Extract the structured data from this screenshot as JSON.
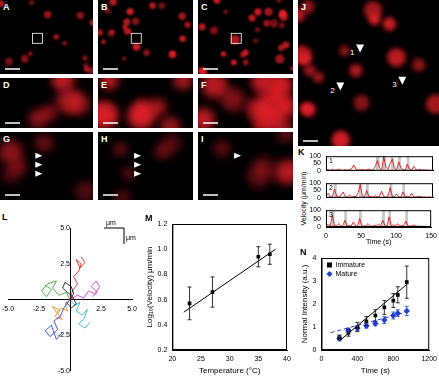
{
  "image_panels": [
    {
      "label": "A"
    },
    {
      "label": "B"
    },
    {
      "label": "C"
    },
    {
      "label": "D"
    },
    {
      "label": "E"
    },
    {
      "label": "F"
    },
    {
      "label": "G",
      "arrowheads": 3
    },
    {
      "label": "H",
      "arrowheads": 3
    },
    {
      "label": "I",
      "arrowheads": 1
    },
    {
      "label": "J",
      "markers": [
        "1",
        "2",
        "3"
      ]
    }
  ],
  "chart_data": [
    {
      "panel_label": "K",
      "type": "line",
      "x_label": "Time (s)",
      "y_label": "Velocity (μm/min)",
      "x": [
        0,
        3,
        6,
        9,
        12,
        15,
        18,
        21,
        24,
        27,
        30,
        33,
        36,
        39,
        42,
        45,
        48,
        51,
        54,
        57,
        60,
        63,
        66,
        69,
        72,
        75,
        78,
        81,
        84,
        87,
        90,
        93,
        96,
        99,
        102,
        105,
        108,
        111,
        114,
        117,
        120,
        123,
        126,
        129,
        132,
        135,
        138,
        141,
        144,
        147
      ],
      "xlim": [
        0,
        150
      ],
      "xticks": [
        0,
        50,
        100,
        150
      ],
      "ylim": [
        0,
        100
      ],
      "yticks": [
        0,
        50,
        100
      ],
      "series": [
        {
          "name": "1",
          "color": "#e00000",
          "values": [
            5,
            8,
            3,
            10,
            4,
            6,
            12,
            5,
            3,
            7,
            4,
            8,
            15,
            40,
            10,
            5,
            6,
            9,
            4,
            8,
            12,
            6,
            5,
            30,
            70,
            20,
            8,
            95,
            25,
            10,
            50,
            80,
            15,
            6,
            60,
            20,
            8,
            5,
            45,
            12,
            6,
            30,
            8,
            5,
            10,
            4,
            7,
            5,
            3,
            4
          ],
          "shaded": [
            [
              70,
              75
            ],
            [
              79,
              84
            ],
            [
              91,
              95
            ],
            [
              101,
              105
            ],
            [
              113,
              117
            ]
          ]
        },
        {
          "name": "2",
          "color": "#e00000",
          "values": [
            10,
            30,
            5,
            8,
            60,
            10,
            5,
            15,
            40,
            8,
            5,
            20,
            6,
            10,
            8,
            35,
            90,
            12,
            6,
            50,
            10,
            8,
            5,
            15,
            6,
            10,
            45,
            8,
            5,
            12,
            70,
            10,
            8,
            25,
            6,
            5,
            40,
            8,
            10,
            5,
            30,
            6,
            5,
            8,
            10,
            4,
            6,
            3,
            5,
            4
          ],
          "shaded": [
            [
              11,
              15
            ],
            [
              46,
              50
            ],
            [
              56,
              60
            ],
            [
              89,
              93
            ],
            [
              107,
              111
            ]
          ]
        },
        {
          "name": "3",
          "color": "#e00000",
          "values": [
            8,
            15,
            5,
            70,
            10,
            6,
            20,
            5,
            8,
            40,
            6,
            10,
            5,
            30,
            8,
            6,
            50,
            10,
            5,
            8,
            20,
            6,
            5,
            10,
            8,
            15,
            6,
            40,
            10,
            5,
            60,
            8,
            12,
            5,
            20,
            6,
            8,
            10,
            35,
            6,
            5,
            8,
            12,
            5,
            6,
            4,
            5,
            3,
            4,
            3
          ],
          "shaded": [
            [
              8,
              12
            ],
            [
              26,
              30
            ],
            [
              47,
              51
            ],
            [
              80,
              84
            ],
            [
              89,
              93
            ],
            [
              113,
              117
            ]
          ]
        }
      ]
    },
    {
      "panel_label": "L",
      "type": "line",
      "xlim": [
        -5,
        5
      ],
      "ylim": [
        -5,
        5
      ],
      "xticks": [
        {
          "value": -5,
          "label": "-5.0"
        },
        -2.5,
        2.5,
        {
          "value": 5,
          "label": "5.0"
        }
      ],
      "yticks": [
        {
          "value": -5,
          "label": "-5.0"
        },
        -2.5,
        2.5,
        {
          "value": 5,
          "label": "5.0"
        }
      ],
      "scale_bar_labels": [
        "μm",
        "μm"
      ],
      "series": [
        {
          "color": "#000000",
          "x": [
            0,
            0.3,
            0.1,
            -0.4,
            -0.6,
            -0.2,
            0.2,
            0.5,
            0.1,
            -0.3
          ],
          "values": [
            0,
            0.4,
            0.9,
            1.2,
            0.8,
            0.5,
            0.2,
            -0.3,
            -0.6,
            -0.2
          ]
        },
        {
          "color": "#1030e0",
          "x": [
            0,
            -0.5,
            -0.8,
            -1.3,
            -1.0,
            -1.6,
            -2.0,
            -1.5,
            -1.1,
            -0.6
          ],
          "values": [
            0,
            -0.6,
            -1.2,
            -1.5,
            -2.1,
            -2.6,
            -2.2,
            -1.8,
            -2.8,
            -2.3
          ]
        },
        {
          "color": "#d020d0",
          "x": [
            0,
            0.6,
            1.1,
            1.5,
            2.0,
            2.4,
            2.1,
            1.7,
            2.2,
            1.8
          ],
          "values": [
            0,
            0.3,
            0.1,
            0.6,
            0.4,
            0.9,
            1.3,
            0.9,
            0.5,
            0.2
          ]
        },
        {
          "color": "#20a020",
          "x": [
            0,
            -0.3,
            -0.9,
            -1.4,
            -1.1,
            -1.8,
            -2.3,
            -1.9,
            -1.5,
            -2.0
          ],
          "values": [
            0,
            0.5,
            0.3,
            0.8,
            1.3,
            1.1,
            0.6,
            0.2,
            0.7,
            1.0
          ]
        },
        {
          "color": "#10b0c0",
          "x": [
            0,
            0.4,
            0.8,
            0.5,
            1.0,
            1.4,
            1.1,
            0.7,
            1.2,
            1.6
          ],
          "values": [
            0,
            -0.4,
            -0.2,
            -0.8,
            -1.1,
            -0.7,
            -1.4,
            -1.7,
            -2.0,
            -1.6
          ]
        },
        {
          "color": "#e01010",
          "x": [
            0,
            0.2,
            0.6,
            0.3,
            0.7,
            0.9,
            0.5,
            0.8,
            1.2,
            0.9
          ],
          "values": [
            0,
            0.6,
            1.1,
            1.6,
            2.0,
            2.5,
            2.8,
            2.2,
            2.6,
            3.0
          ]
        },
        {
          "color": "#e08010",
          "x": [
            0,
            -0.4,
            -0.2,
            -0.7,
            -1.0,
            -0.6,
            -1.2,
            -0.9,
            -1.4,
            -1.1
          ],
          "values": [
            0,
            -0.3,
            -0.8,
            -0.6,
            -1.0,
            -1.4,
            -1.2,
            -0.7,
            -0.5,
            -0.9
          ]
        }
      ]
    },
    {
      "panel_label": "M",
      "type": "scatter",
      "x_label": "Temperature (°C)",
      "y_label": "Log₁₀(Velocity) μm/min",
      "xlim": [
        20,
        40
      ],
      "xticks": [
        20,
        25,
        30,
        35,
        40
      ],
      "ylim": [
        0.2,
        1.2
      ],
      "yticks": [
        0.2,
        0.4,
        0.6,
        0.8,
        {
          "value": 1,
          "label": "1.0"
        },
        1.2
      ],
      "series": [
        {
          "color": "#000000",
          "marker": "square",
          "line_style": "solid",
          "x": [
            23,
            27,
            35,
            37
          ],
          "values": [
            0.57,
            0.66,
            0.94,
            0.96
          ],
          "errors": [
            0.13,
            0.12,
            0.08,
            0.08
          ],
          "fit": {
            "x": [
              22,
              38
            ],
            "values": [
              0.5,
              1.0
            ]
          }
        }
      ]
    },
    {
      "panel_label": "N",
      "type": "scatter",
      "x_label": "Time (s)",
      "y_label": "Normal Intensity (a.u.)",
      "xlim": [
        0,
        1200
      ],
      "xticks": [
        0,
        400,
        800,
        1200
      ],
      "ylim": [
        0,
        4
      ],
      "yticks": [
        0,
        1,
        2,
        3,
        4
      ],
      "legend": "top-left",
      "series": [
        {
          "name": "Immature",
          "color": "#000000",
          "marker": "square",
          "line_style": "solid",
          "x": [
            200,
            300,
            400,
            500,
            600,
            700,
            800,
            850,
            950
          ],
          "values": [
            0.55,
            0.75,
            1.0,
            1.25,
            1.5,
            1.85,
            2.15,
            2.4,
            2.95
          ],
          "errors": [
            0.1,
            0.15,
            0.2,
            0.2,
            0.25,
            0.3,
            0.3,
            0.35,
            0.7
          ],
          "fit": {
            "x": [
              200,
              950
            ],
            "values": [
              0.4,
              2.85
            ]
          }
        },
        {
          "name": "Mature",
          "color": "#1f3fd0",
          "marker": "diamond",
          "line_style": "dashed",
          "x": [
            200,
            300,
            400,
            500,
            600,
            700,
            800,
            850,
            950
          ],
          "values": [
            0.5,
            0.85,
            0.95,
            1.05,
            1.15,
            1.3,
            1.5,
            1.6,
            1.7
          ],
          "errors": [
            0.1,
            0.1,
            0.1,
            0.1,
            0.1,
            0.15,
            0.15,
            0.15,
            0.2
          ],
          "fit": {
            "x": [
              100,
              950
            ],
            "values": [
              0.75,
              1.65
            ]
          }
        }
      ]
    }
  ]
}
